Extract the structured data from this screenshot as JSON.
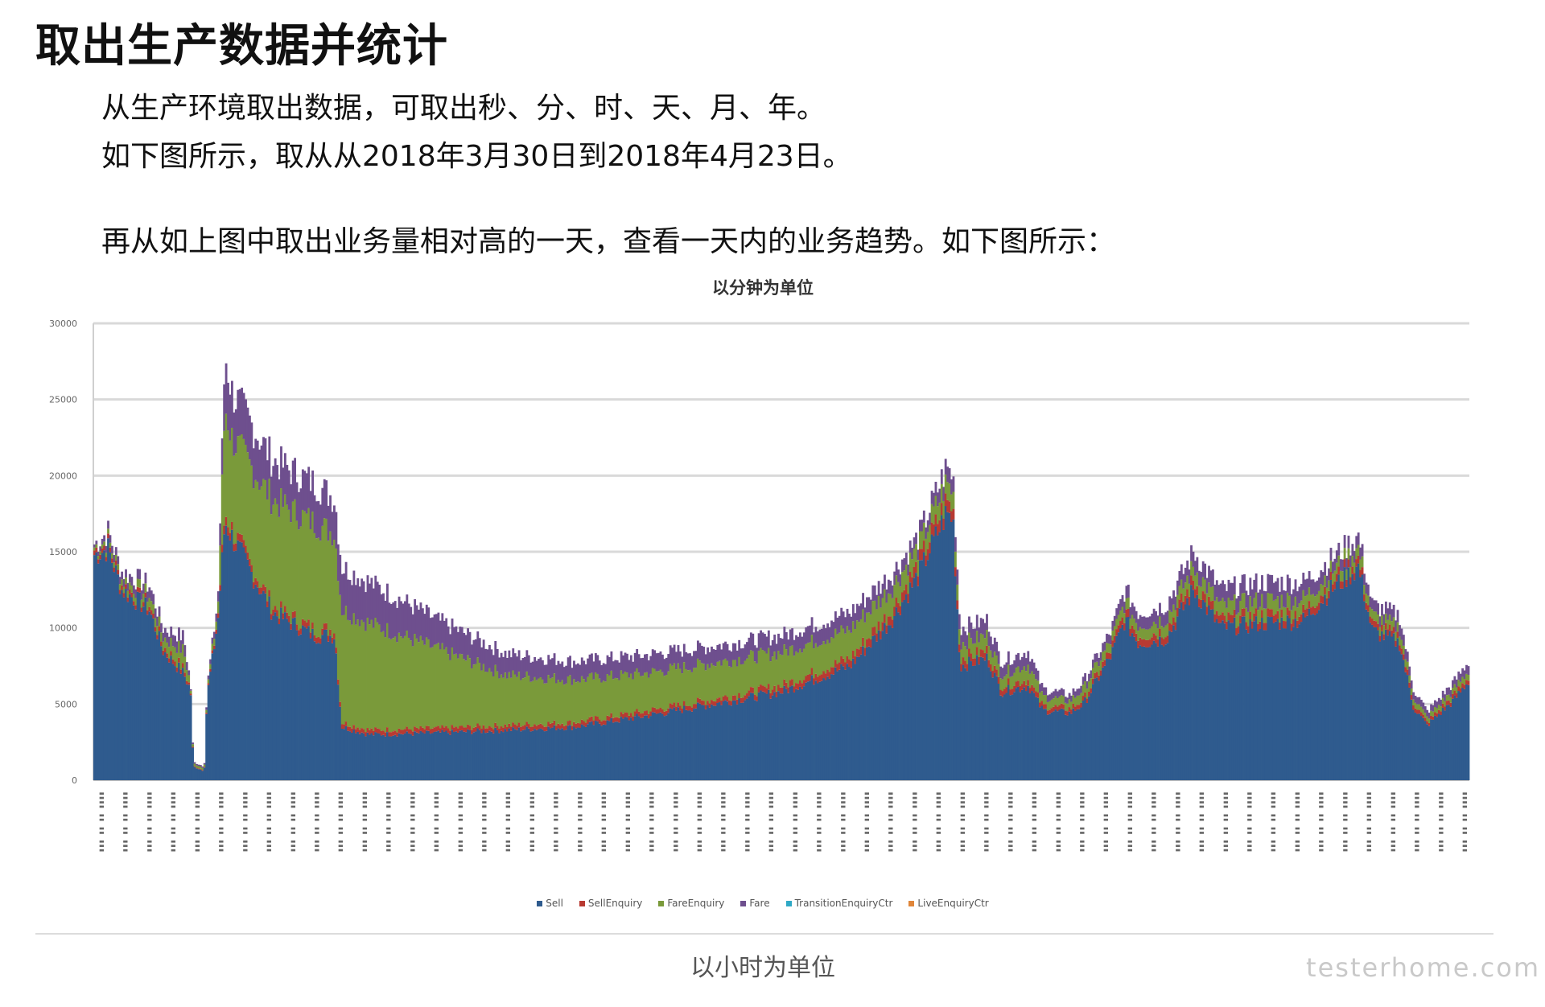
{
  "document": {
    "title": "取出生产数据并统计",
    "paragraphs": [
      "从生产环境取出数据，可取出秒、分、时、天、月、年。",
      "如下图所示，取从从2018年3月30日到2018年4月23日。",
      "再从如上图中取出业务量相对高的一天，查看一天内的业务趋势。如下图所示："
    ],
    "caption": "以小时为单位",
    "watermark": "testerhome.com"
  },
  "chart_data": {
    "type": "bar",
    "stacked": true,
    "title": "以分钟为单位",
    "ylim": [
      0,
      30000
    ],
    "yticks": [
      0,
      5000,
      10000,
      15000,
      20000,
      25000,
      30000
    ],
    "grid": true,
    "legend_position": "bottom",
    "series": [
      {
        "name": "Sell",
        "color": "#2f5b8e"
      },
      {
        "name": "SellEnquiry",
        "color": "#b83a32"
      },
      {
        "name": "FareEnquiry",
        "color": "#7a9a3a"
      },
      {
        "name": "Fare",
        "color": "#6e4f8e"
      },
      {
        "name": "TransitionEnquiryCtr",
        "color": "#2fa9c6"
      },
      {
        "name": "LiveEnquiryCtr",
        "color": "#e0863a"
      }
    ],
    "profile_points": [
      {
        "x": 0.0,
        "total": 15500,
        "blue": 14800,
        "red": 300,
        "green": 200,
        "purple": 200
      },
      {
        "x": 0.01,
        "total": 16300,
        "blue": 15200,
        "red": 300,
        "green": 300,
        "purple": 500
      },
      {
        "x": 0.02,
        "total": 13700,
        "blue": 12500,
        "red": 300,
        "green": 400,
        "purple": 500
      },
      {
        "x": 0.04,
        "total": 12800,
        "blue": 11200,
        "red": 300,
        "green": 600,
        "purple": 700
      },
      {
        "x": 0.05,
        "total": 10000,
        "blue": 8500,
        "red": 300,
        "green": 600,
        "purple": 600
      },
      {
        "x": 0.065,
        "total": 9400,
        "blue": 7000,
        "red": 300,
        "green": 1200,
        "purple": 900
      },
      {
        "x": 0.07,
        "total": 6300,
        "blue": 5900,
        "red": 100,
        "green": 200,
        "purple": 100
      },
      {
        "x": 0.072,
        "total": 1200,
        "blue": 900,
        "red": 50,
        "green": 150,
        "purple": 100
      },
      {
        "x": 0.08,
        "total": 900,
        "blue": 600,
        "red": 50,
        "green": 150,
        "purple": 100
      },
      {
        "x": 0.082,
        "total": 6000,
        "blue": 5500,
        "red": 100,
        "green": 200,
        "purple": 200
      },
      {
        "x": 0.09,
        "total": 12000,
        "blue": 10500,
        "red": 300,
        "green": 600,
        "purple": 600
      },
      {
        "x": 0.095,
        "total": 28000,
        "blue": 17000,
        "red": 600,
        "green": 7000,
        "purple": 3400
      },
      {
        "x": 0.1,
        "total": 25500,
        "blue": 16000,
        "red": 500,
        "green": 6000,
        "purple": 3000
      },
      {
        "x": 0.13,
        "total": 21000,
        "blue": 11000,
        "red": 400,
        "green": 7000,
        "purple": 2600
      },
      {
        "x": 0.16,
        "total": 19500,
        "blue": 9500,
        "red": 400,
        "green": 7000,
        "purple": 2600
      },
      {
        "x": 0.175,
        "total": 18500,
        "blue": 9500,
        "red": 400,
        "green": 6300,
        "purple": 2300
      },
      {
        "x": 0.18,
        "total": 14000,
        "blue": 3500,
        "red": 300,
        "green": 7400,
        "purple": 2800
      },
      {
        "x": 0.2,
        "total": 13000,
        "blue": 3000,
        "red": 300,
        "green": 7000,
        "purple": 2700
      },
      {
        "x": 0.25,
        "total": 10500,
        "blue": 3100,
        "red": 300,
        "green": 5200,
        "purple": 1900
      },
      {
        "x": 0.3,
        "total": 8300,
        "blue": 3300,
        "red": 300,
        "green": 3300,
        "purple": 1400
      },
      {
        "x": 0.35,
        "total": 7800,
        "blue": 3500,
        "red": 300,
        "green": 2800,
        "purple": 1200
      },
      {
        "x": 0.4,
        "total": 8200,
        "blue": 4200,
        "red": 300,
        "green": 2500,
        "purple": 1200
      },
      {
        "x": 0.45,
        "total": 8800,
        "blue": 5000,
        "red": 300,
        "green": 2400,
        "purple": 1100
      },
      {
        "x": 0.5,
        "total": 9500,
        "blue": 5800,
        "red": 400,
        "green": 2200,
        "purple": 1100
      },
      {
        "x": 0.55,
        "total": 11000,
        "blue": 7500,
        "red": 500,
        "green": 1900,
        "purple": 1100
      },
      {
        "x": 0.58,
        "total": 13500,
        "blue": 10500,
        "red": 600,
        "green": 1500,
        "purple": 900
      },
      {
        "x": 0.6,
        "total": 16000,
        "blue": 13500,
        "red": 700,
        "green": 1100,
        "purple": 700
      },
      {
        "x": 0.62,
        "total": 20500,
        "blue": 17500,
        "red": 800,
        "green": 1200,
        "purple": 1000
      },
      {
        "x": 0.625,
        "total": 20000,
        "blue": 17200,
        "red": 700,
        "green": 1100,
        "purple": 1000
      },
      {
        "x": 0.63,
        "total": 10000,
        "blue": 7500,
        "red": 500,
        "green": 1000,
        "purple": 1000
      },
      {
        "x": 0.65,
        "total": 10500,
        "blue": 8000,
        "red": 500,
        "green": 1000,
        "purple": 1000
      },
      {
        "x": 0.66,
        "total": 7800,
        "blue": 5800,
        "red": 400,
        "green": 800,
        "purple": 800
      },
      {
        "x": 0.68,
        "total": 8500,
        "blue": 6200,
        "red": 400,
        "green": 1000,
        "purple": 900
      },
      {
        "x": 0.69,
        "total": 6000,
        "blue": 4600,
        "red": 300,
        "green": 600,
        "purple": 500
      },
      {
        "x": 0.71,
        "total": 5600,
        "blue": 4400,
        "red": 300,
        "green": 500,
        "purple": 400
      },
      {
        "x": 0.72,
        "total": 6500,
        "blue": 5000,
        "red": 300,
        "green": 700,
        "purple": 500
      },
      {
        "x": 0.74,
        "total": 9800,
        "blue": 8200,
        "red": 400,
        "green": 600,
        "purple": 600
      },
      {
        "x": 0.75,
        "total": 12500,
        "blue": 10500,
        "red": 500,
        "green": 700,
        "purple": 800
      },
      {
        "x": 0.76,
        "total": 11000,
        "blue": 9000,
        "red": 500,
        "green": 700,
        "purple": 800
      },
      {
        "x": 0.78,
        "total": 11500,
        "blue": 9300,
        "red": 500,
        "green": 800,
        "purple": 900
      },
      {
        "x": 0.8,
        "total": 15000,
        "blue": 12500,
        "red": 600,
        "green": 900,
        "purple": 1000
      },
      {
        "x": 0.82,
        "total": 12500,
        "blue": 10000,
        "red": 500,
        "green": 900,
        "purple": 1100
      },
      {
        "x": 0.85,
        "total": 13000,
        "blue": 10300,
        "red": 500,
        "green": 1000,
        "purple": 1200
      },
      {
        "x": 0.88,
        "total": 13000,
        "blue": 10500,
        "red": 500,
        "green": 900,
        "purple": 1100
      },
      {
        "x": 0.9,
        "total": 14500,
        "blue": 12500,
        "red": 500,
        "green": 700,
        "purple": 800
      },
      {
        "x": 0.92,
        "total": 16000,
        "blue": 14000,
        "red": 500,
        "green": 700,
        "purple": 800
      },
      {
        "x": 0.93,
        "total": 11500,
        "blue": 9800,
        "red": 400,
        "green": 600,
        "purple": 700
      },
      {
        "x": 0.95,
        "total": 10800,
        "blue": 9000,
        "red": 400,
        "green": 600,
        "purple": 800
      },
      {
        "x": 0.96,
        "total": 6000,
        "blue": 4800,
        "red": 300,
        "green": 400,
        "purple": 500
      },
      {
        "x": 0.97,
        "total": 4500,
        "blue": 3600,
        "red": 200,
        "green": 300,
        "purple": 400
      },
      {
        "x": 0.99,
        "total": 6500,
        "blue": 5300,
        "red": 300,
        "green": 400,
        "purple": 500
      },
      {
        "x": 1.0,
        "total": 7800,
        "blue": 6500,
        "red": 300,
        "green": 400,
        "purple": 600
      }
    ]
  }
}
